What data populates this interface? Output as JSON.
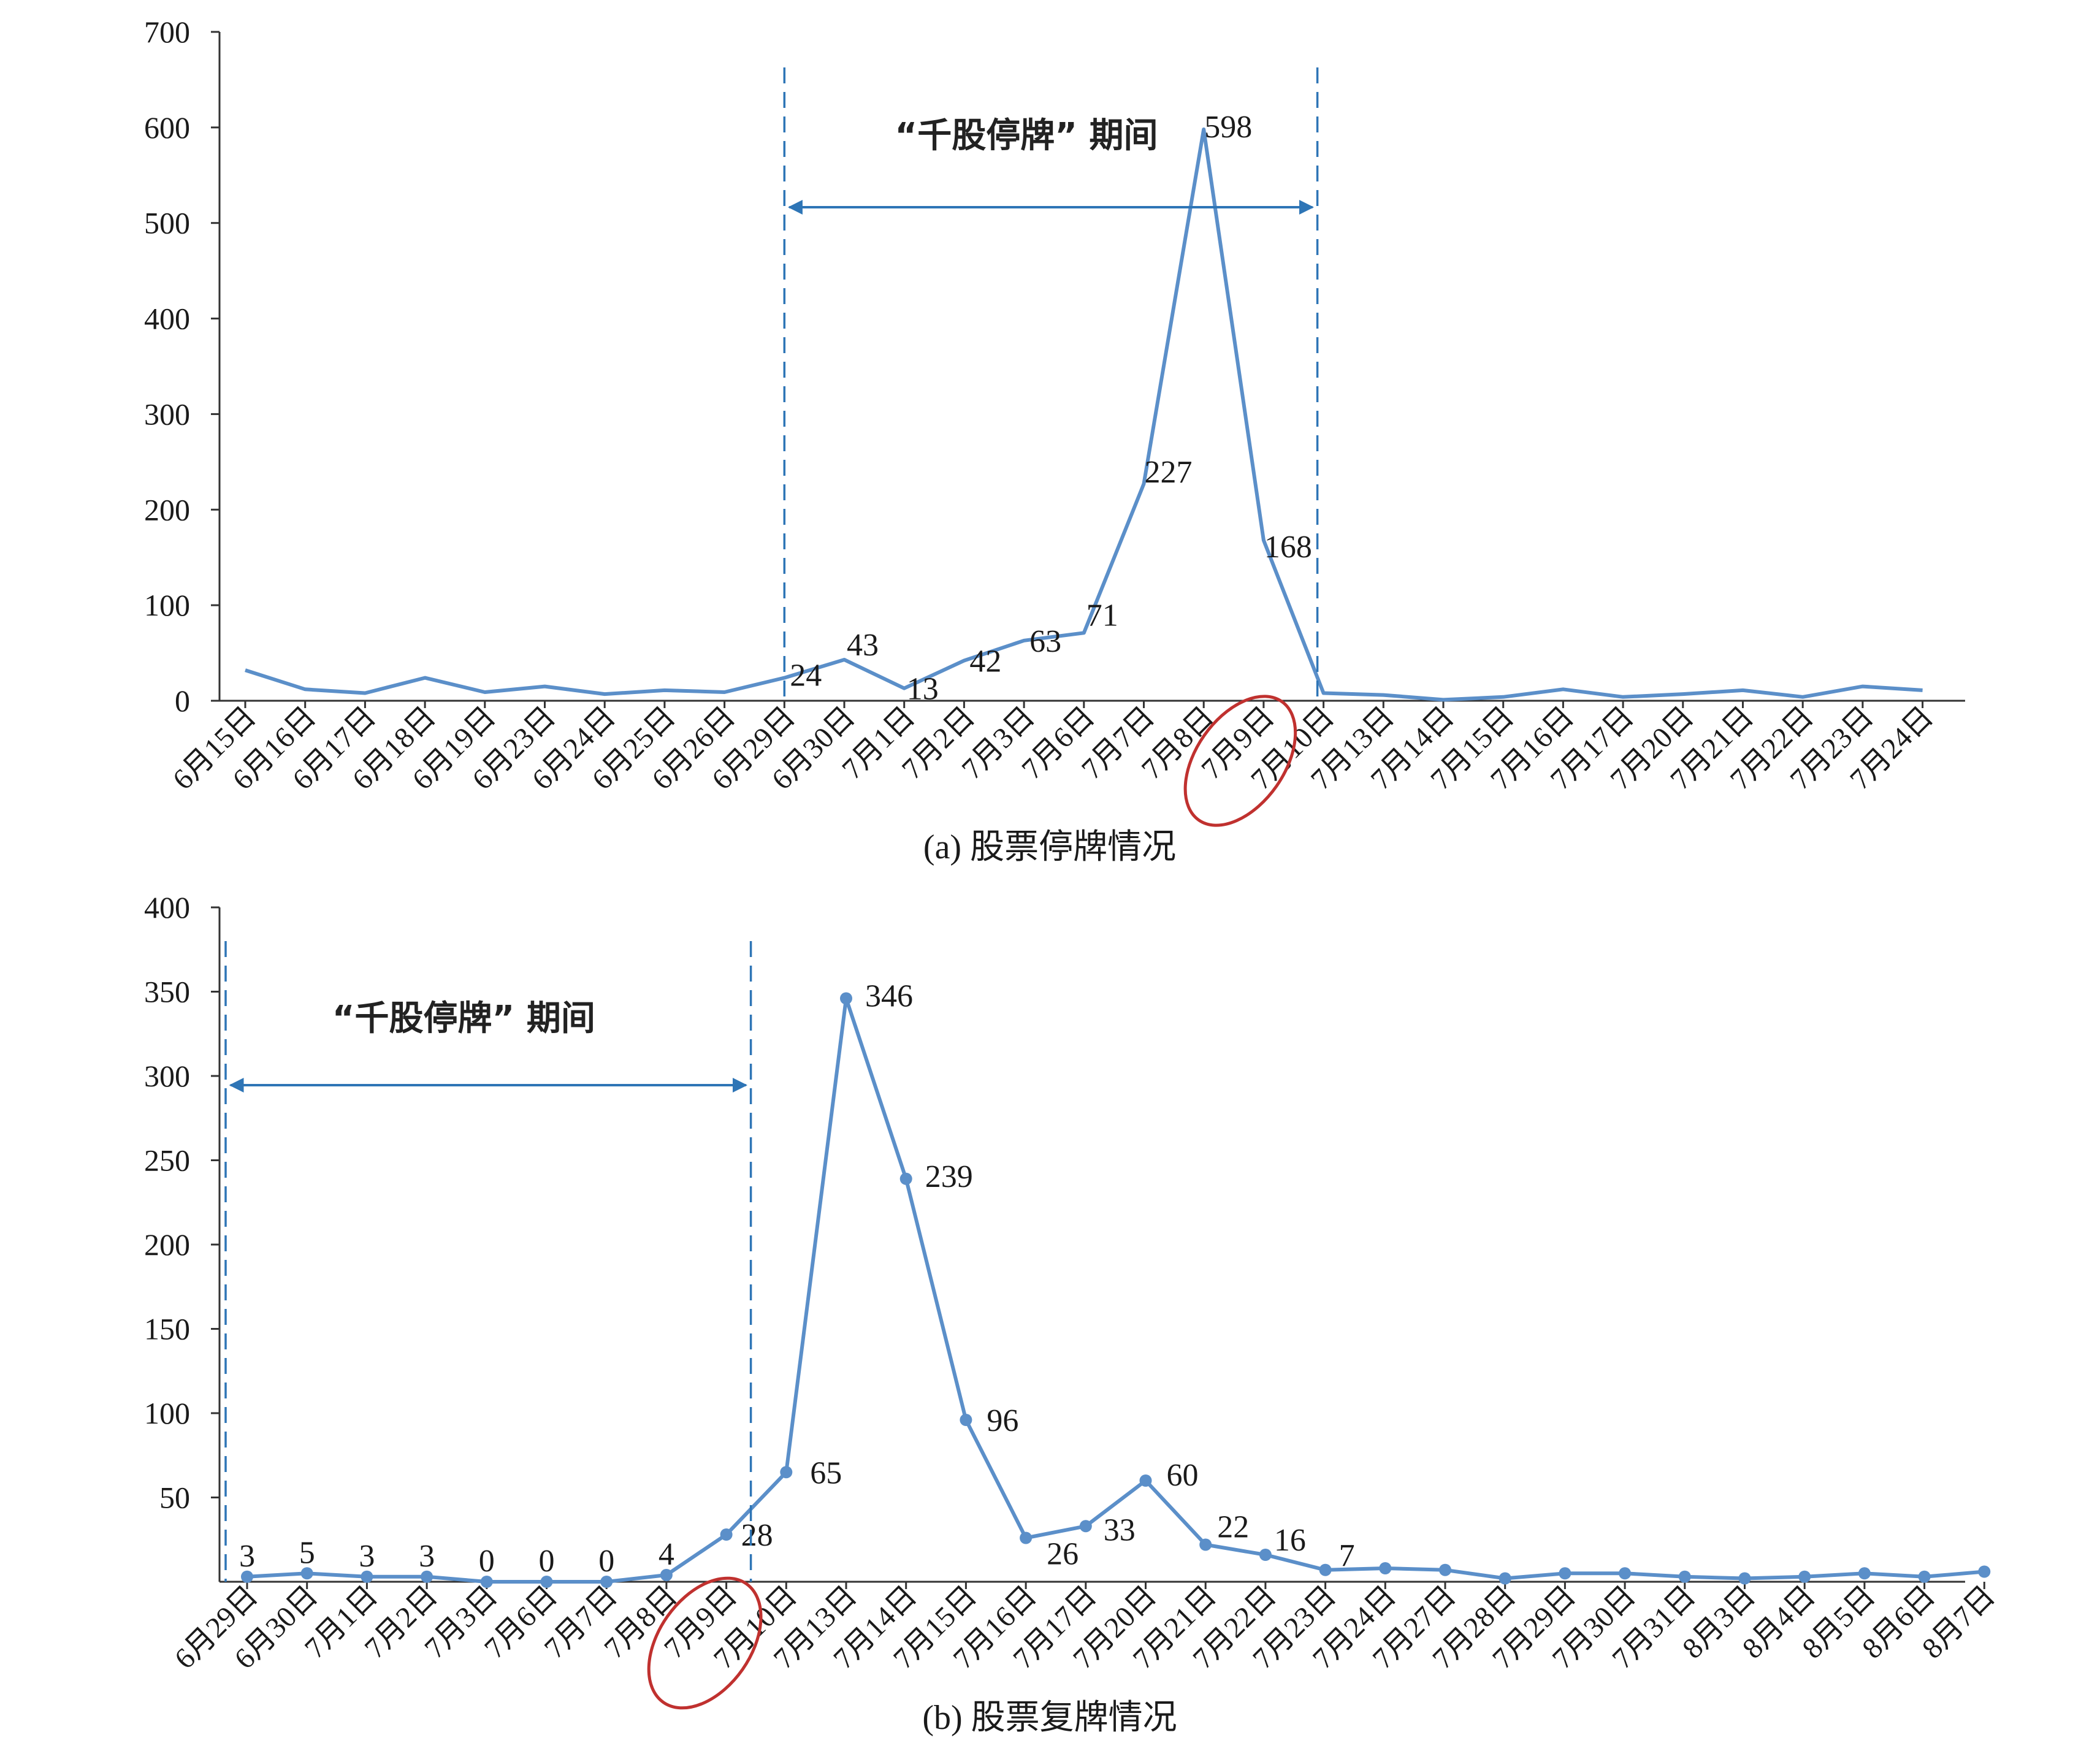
{
  "chart_data": [
    {
      "type": "line",
      "caption": "(a) 股票停牌情况",
      "categories": [
        "6月15日",
        "6月16日",
        "6月17日",
        "6月18日",
        "6月19日",
        "6月23日",
        "6月24日",
        "6月25日",
        "6月26日",
        "6月29日",
        "6月30日",
        "7月1日",
        "7月2日",
        "7月3日",
        "7月6日",
        "7月7日",
        "7月8日",
        "7月9日",
        "7月10日",
        "7月13日",
        "7月14日",
        "7月15日",
        "7月16日",
        "7月17日",
        "7月20日",
        "7月21日",
        "7月22日",
        "7月23日",
        "7月24日"
      ],
      "values": [
        32,
        12,
        8,
        24,
        9,
        15,
        7,
        11,
        9,
        24,
        43,
        13,
        42,
        63,
        71,
        227,
        598,
        168,
        8,
        6,
        1,
        4,
        12,
        4,
        7,
        11,
        4,
        15,
        11
      ],
      "data_labels": [
        {
          "index": 9,
          "text": "24"
        },
        {
          "index": 10,
          "text": "43"
        },
        {
          "index": 11,
          "text": "13"
        },
        {
          "index": 12,
          "text": "42"
        },
        {
          "index": 13,
          "text": "63"
        },
        {
          "index": 14,
          "text": "71"
        },
        {
          "index": 15,
          "text": "227"
        },
        {
          "index": 16,
          "text": "598"
        },
        {
          "index": 17,
          "text": "168"
        }
      ],
      "ylim": [
        0,
        700
      ],
      "yticks": [
        0,
        100,
        200,
        300,
        400,
        500,
        600,
        700
      ],
      "markers": false,
      "period_label": "“千股停牌” 期间",
      "period_range": [
        9,
        18
      ],
      "highlight_category": "7月9日",
      "highlight_index": 17
    },
    {
      "type": "line",
      "caption": "(b) 股票复牌情况",
      "categories": [
        "6月29日",
        "6月30日",
        "7月1日",
        "7月2日",
        "7月3日",
        "7月6日",
        "7月7日",
        "7月8日",
        "7月9日",
        "7月10日",
        "7月13日",
        "7月14日",
        "7月15日",
        "7月16日",
        "7月17日",
        "7月20日",
        "7月21日",
        "7月22日",
        "7月23日",
        "7月24日",
        "7月27日",
        "7月28日",
        "7月29日",
        "7月30日",
        "7月31日",
        "8月3日",
        "8月4日",
        "8月5日",
        "8月6日",
        "8月7日"
      ],
      "values": [
        3,
        5,
        3,
        3,
        0,
        0,
        0,
        4,
        28,
        65,
        346,
        239,
        96,
        26,
        33,
        60,
        22,
        16,
        7,
        8,
        7,
        2,
        5,
        5,
        3,
        2,
        3,
        5,
        3,
        6
      ],
      "data_labels": [
        {
          "index": 0,
          "text": "3"
        },
        {
          "index": 1,
          "text": "5"
        },
        {
          "index": 2,
          "text": "3"
        },
        {
          "index": 3,
          "text": "3"
        },
        {
          "index": 4,
          "text": "0"
        },
        {
          "index": 5,
          "text": "0"
        },
        {
          "index": 6,
          "text": "0"
        },
        {
          "index": 7,
          "text": "4"
        },
        {
          "index": 8,
          "text": "28"
        },
        {
          "index": 9,
          "text": "65"
        },
        {
          "index": 10,
          "text": "346"
        },
        {
          "index": 11,
          "text": "239"
        },
        {
          "index": 12,
          "text": "96"
        },
        {
          "index": 13,
          "text": "26"
        },
        {
          "index": 14,
          "text": "33"
        },
        {
          "index": 15,
          "text": "60"
        },
        {
          "index": 16,
          "text": "22"
        },
        {
          "index": 17,
          "text": "16"
        },
        {
          "index": 18,
          "text": "7"
        }
      ],
      "ylim": [
        0,
        400
      ],
      "yticks": [
        50,
        100,
        150,
        200,
        250,
        300,
        350,
        400
      ],
      "markers": true,
      "period_label": "“千股停牌” 期间",
      "period_range": [
        0,
        8
      ],
      "highlight_category": "7月9日",
      "highlight_index": 8
    }
  ],
  "colors": {
    "series": "#5b8fc9",
    "period_lines": "#2e75b6",
    "highlight_circle": "#c0312f"
  }
}
